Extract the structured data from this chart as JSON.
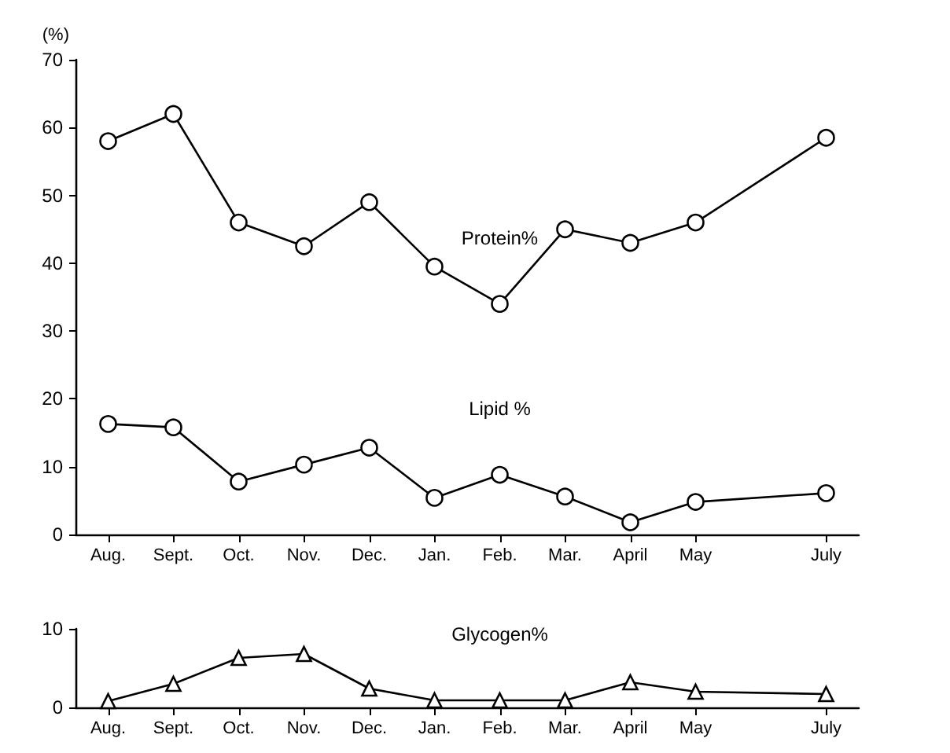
{
  "chart_data": [
    {
      "type": "line",
      "ylabel": "(%)",
      "categories": [
        "Aug.",
        "Sept.",
        "Oct.",
        "Nov.",
        "Dec.",
        "Jan.",
        "Feb.",
        "Mar.",
        "April",
        "May",
        null,
        "July"
      ],
      "series": [
        {
          "name": "Protein%",
          "color": "#000000",
          "marker": "circle",
          "values": [
            58,
            62,
            46,
            42.5,
            49,
            39.5,
            34,
            45,
            43,
            46,
            null,
            58.5
          ]
        },
        {
          "name": "Lipid %",
          "color": "#000000",
          "marker": "circle",
          "values": [
            16.3,
            15.8,
            7.8,
            10.3,
            12.8,
            5.4,
            8.8,
            5.6,
            1.8,
            4.8,
            null,
            6.1
          ]
        }
      ],
      "ylim": [
        0,
        70
      ],
      "yticks": [
        0,
        10,
        20,
        30,
        40,
        50,
        60,
        70
      ],
      "grid": false,
      "legend": false,
      "line_style": "solid"
    },
    {
      "type": "line",
      "categories": [
        "Aug.",
        "Sept.",
        "Oct.",
        "Nov.",
        "Dec.",
        "Jan.",
        "Feb.",
        "Mar.",
        "April",
        "May",
        null,
        "July"
      ],
      "series": [
        {
          "name": "Glycogen%",
          "color": "#000000",
          "marker": "triangle",
          "values": [
            0.8,
            3,
            6.3,
            6.8,
            2.4,
            0.9,
            0.9,
            0.9,
            3.2,
            2,
            null,
            1.7
          ]
        }
      ],
      "ylim": [
        0,
        10
      ],
      "yticks": [
        0,
        10
      ],
      "grid": false,
      "legend": false,
      "line_style": "solid"
    }
  ]
}
